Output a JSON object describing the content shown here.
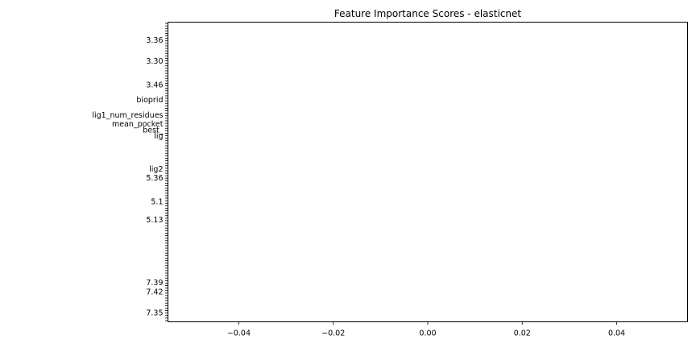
{
  "chart_data": {
    "type": "bar",
    "orientation": "horizontal",
    "title": "Feature Importance Scores - elasticnet",
    "xlabel": "",
    "ylabel": "",
    "xlim": [
      -0.055,
      0.055
    ],
    "xticks": [
      -0.04,
      -0.02,
      0.0,
      0.02,
      0.04
    ],
    "xtick_labels": [
      "−0.04",
      "−0.02",
      "0.00",
      "0.02",
      "0.04"
    ],
    "grid": false,
    "legend": "none",
    "bar_color": "#1f77b4",
    "visible_category_labels": [
      "3.36",
      "3.30",
      "3.46",
      "5.36",
      "5.1",
      "5.13",
      "bioprid",
      "lig1_num_residues",
      "mean_pocket",
      "best_",
      "lig",
      "lig2",
      "7.39",
      "7.42",
      "7.35"
    ],
    "values": [
      0,
      0,
      0,
      0,
      0,
      0,
      0,
      0,
      0,
      0,
      0,
      0,
      0,
      0,
      0,
      0,
      0,
      0,
      0,
      0,
      0,
      0,
      0,
      0,
      0,
      0,
      0,
      0,
      0,
      0,
      0,
      0,
      0,
      0,
      0,
      0,
      0,
      0,
      0,
      0,
      0,
      0,
      0,
      0,
      0,
      0,
      0,
      0,
      0,
      0,
      0,
      0,
      0,
      0,
      0,
      0,
      0,
      0,
      0,
      0,
      0,
      0,
      0,
      0,
      0,
      0,
      0,
      0,
      0,
      0,
      0,
      0,
      0,
      0,
      0,
      0,
      0,
      0,
      0,
      0,
      0,
      0,
      0,
      0,
      0,
      0,
      0,
      0,
      0,
      0,
      0,
      0,
      0,
      0,
      0,
      0,
      0,
      0,
      0,
      0,
      0,
      0,
      0,
      0,
      0,
      0,
      0,
      0,
      0,
      0,
      0,
      0,
      0,
      0,
      0,
      0,
      0,
      0,
      0,
      0
    ]
  }
}
